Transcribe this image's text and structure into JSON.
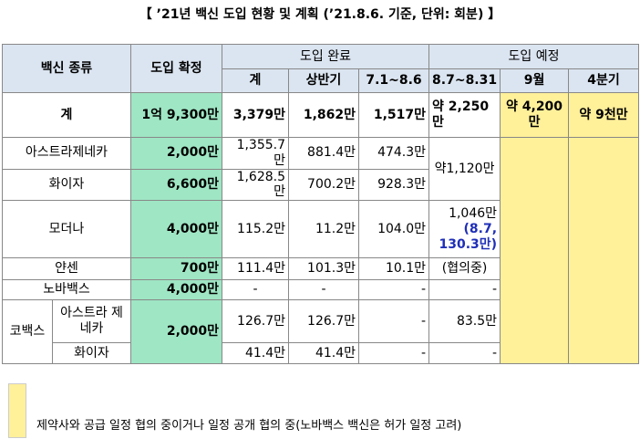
{
  "title": "【 ’21년 백신 도입 현황 및 계획 (’21.8.6. 기준, 단위: 회분) 】",
  "table": {
    "header": {
      "kind": "백신 종류",
      "confirmed": "도입 확정",
      "done": "도입 완료",
      "planned": "도입 예정",
      "done_cols": [
        "계",
        "상반기",
        "7.1~8.6"
      ],
      "planned_cols": [
        "8.7~8.31",
        "9월",
        "4분기"
      ]
    },
    "total": {
      "label": "계",
      "confirmed": "1억 9,300만",
      "done": [
        "3,379만",
        "1,862만",
        "1,517만"
      ],
      "planned": [
        "약 2,250만",
        "약 4,200만",
        "약 9천만"
      ]
    },
    "rows": [
      {
        "name": "아스트라제네카",
        "confirmed": "2,000만",
        "total": "1,355.7만",
        "h1": "881.4만",
        "jul_aug": "474.3만",
        "aug": "약1,120만"
      },
      {
        "name": "화이자",
        "confirmed": "6,600만",
        "total": "1,628.5만",
        "h1": "700.2만",
        "jul_aug": "928.3만"
      },
      {
        "name": "모더나",
        "confirmed": "4,000만",
        "total": "115.2만",
        "h1": "11.2만",
        "jul_aug": "104.0만",
        "aug": "1,046만",
        "aug_note": "(8.7, 130.3만)"
      },
      {
        "name": "얀센",
        "confirmed": "700만",
        "total": "111.4만",
        "h1": "101.3만",
        "jul_aug": "10.1만",
        "aug": "(협의중)"
      },
      {
        "name": "노바백스",
        "confirmed": "4,000만",
        "total": "-",
        "h1": "-",
        "jul_aug": "-",
        "aug": "-"
      }
    ],
    "covax": {
      "group": "코백스",
      "confirmed": "2,000만",
      "items": [
        {
          "name": "아스트라 제네카",
          "total": "126.7만",
          "h1": "126.7만",
          "jul_aug": "-",
          "aug": "83.5만"
        },
        {
          "name": "화이자",
          "total": "41.4만",
          "h1": "41.4만",
          "jul_aug": "-",
          "aug": "-"
        }
      ]
    }
  },
  "legend": "제약사와 공급 일정 협의 중이거나 일정 공개 협의 중(노바백스 백신은 허가 일정 고려)"
}
